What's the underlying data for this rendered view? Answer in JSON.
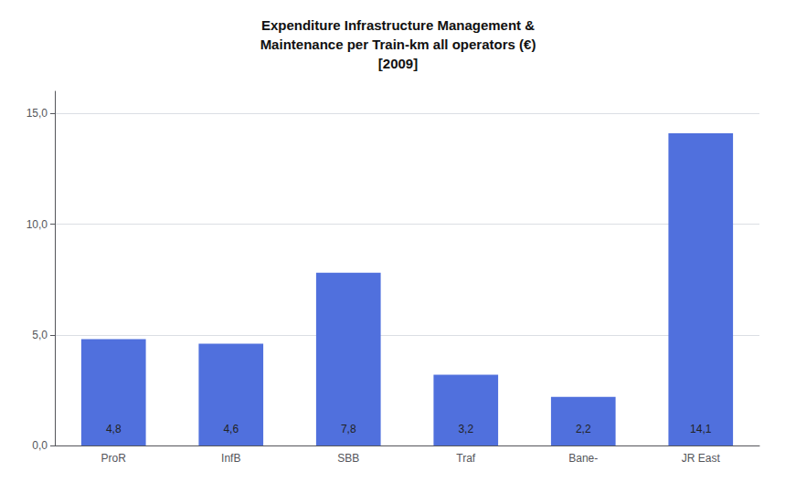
{
  "chart_data": {
    "type": "bar",
    "title": "Expenditure Infrastructure Management &\nMaintenance per Train-km all operators (€)\n[2009]",
    "categories": [
      "ProR",
      "InfB",
      "SBB",
      "Traf",
      "Bane-",
      "JR East"
    ],
    "values": [
      4.8,
      4.6,
      7.8,
      3.2,
      2.2,
      14.1
    ],
    "value_labels": [
      "4,8",
      "4,6",
      "7,8",
      "3,2",
      "2,2",
      "14,1"
    ],
    "data_labels": true,
    "ylim": [
      0,
      16
    ],
    "yticks": [
      {
        "value": 0.0,
        "label": "0,0"
      },
      {
        "value": 5.0,
        "label": "5,0"
      },
      {
        "value": 10.0,
        "label": "10,0"
      },
      {
        "value": 15.0,
        "label": "15,0"
      }
    ],
    "grid": true
  }
}
